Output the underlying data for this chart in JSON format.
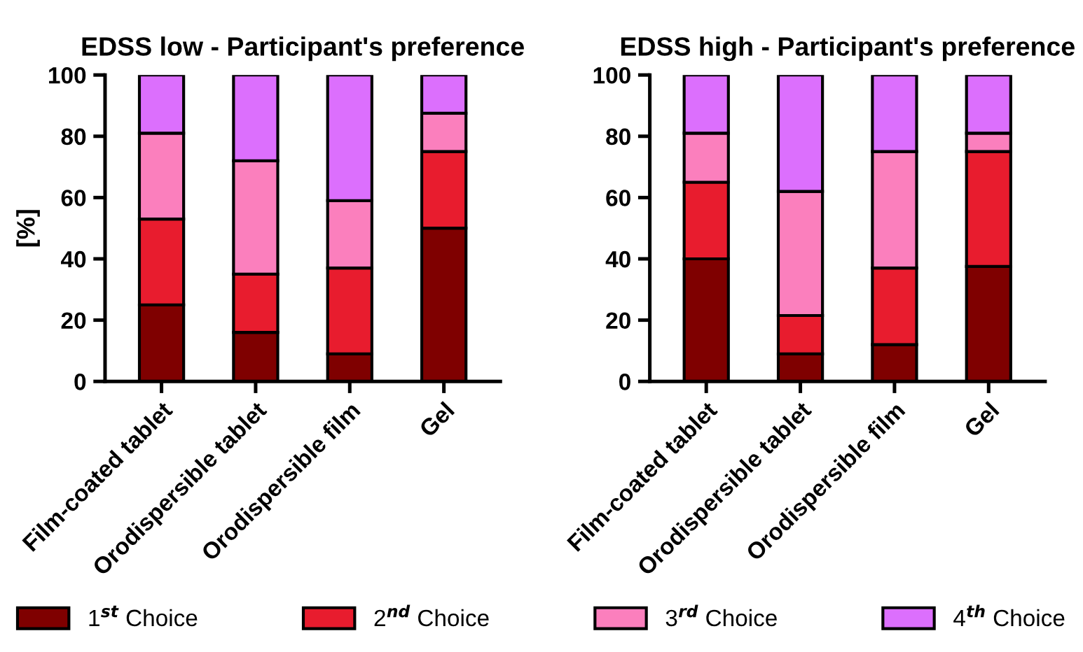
{
  "chart_data": [
    {
      "type": "bar",
      "stacked": true,
      "title": "EDSS low - Participant's preference",
      "ylabel": "[%]",
      "categories": [
        "Film-coated tablet",
        "Orodispersible tablet",
        "Orodispersible film",
        "Gel"
      ],
      "ylim": [
        0,
        100
      ],
      "yticks": [
        0,
        20,
        40,
        60,
        80,
        100
      ],
      "legend": "bottom",
      "series": [
        {
          "name": "1$^{st}$ Choice",
          "color": "#7f0000",
          "values": [
            25,
            16,
            9,
            50
          ]
        },
        {
          "name": "2$^{nd}$ Choice",
          "color": "#e81c2e",
          "values": [
            28,
            19,
            28,
            25
          ]
        },
        {
          "name": "3$^{rd}$ Choice",
          "color": "#fb7fbd",
          "values": [
            28,
            37,
            22,
            12.5
          ]
        },
        {
          "name": "4$^{th}$ Choice",
          "color": "#dc6ffd",
          "values": [
            19,
            28,
            41,
            12.5
          ]
        }
      ]
    },
    {
      "type": "bar",
      "stacked": true,
      "title": "EDSS high - Participant's preference",
      "categories": [
        "Film-coated tablet",
        "Orodispersible tablet",
        "Orodispersible film",
        "Gel"
      ],
      "ylim": [
        0,
        100
      ],
      "yticks": [
        0,
        20,
        40,
        60,
        80,
        100
      ],
      "series": [
        {
          "color": "#7f0000",
          "values": [
            40,
            9,
            12,
            37.5
          ]
        },
        {
          "color": "#e81c2e",
          "values": [
            25,
            12.5,
            25,
            37.5
          ]
        },
        {
          "color": "#fb7fbd",
          "values": [
            16,
            40.5,
            38,
            6
          ]
        },
        {
          "color": "#dc6ffd",
          "values": [
            19,
            38,
            25,
            19
          ]
        }
      ]
    }
  ]
}
